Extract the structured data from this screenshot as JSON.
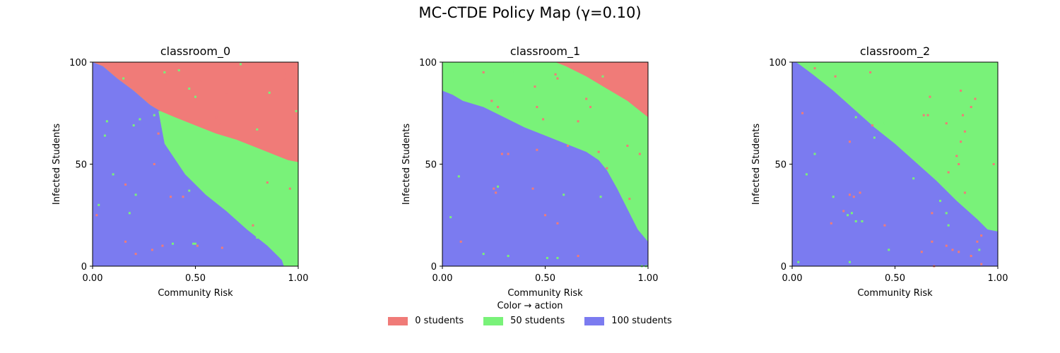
{
  "title": "MC-CTDE Policy Map (γ=0.10)",
  "legend": {
    "title": "Color → action",
    "items": [
      {
        "label": "0 students",
        "color": "#f07b78"
      },
      {
        "label": "50 students",
        "color": "#79f279"
      },
      {
        "label": "100 students",
        "color": "#7b7bf0"
      }
    ]
  },
  "chart_data": [
    {
      "type": "heatmap",
      "title": "classroom_0",
      "xlabel": "Community Risk",
      "ylabel": "Infected Students",
      "xlim": [
        0,
        1
      ],
      "ylim": [
        0,
        100
      ],
      "xticks": [
        "0.00",
        "0.50",
        "1.00"
      ],
      "yticks": [
        "0",
        "50",
        "100"
      ],
      "actions": [
        0,
        50,
        100
      ],
      "boundary_100_50": [
        [
          0.32,
          76
        ],
        [
          0.35,
          60
        ],
        [
          0.45,
          45
        ],
        [
          0.55,
          35
        ],
        [
          0.65,
          27
        ],
        [
          0.75,
          18
        ],
        [
          0.85,
          10
        ],
        [
          0.9,
          5
        ],
        [
          0.92,
          3
        ],
        [
          0.93,
          0
        ]
      ],
      "boundary_50_0": [
        [
          0.0,
          100
        ],
        [
          0.05,
          98
        ],
        [
          0.12,
          92
        ],
        [
          0.2,
          86
        ],
        [
          0.28,
          79
        ],
        [
          0.33,
          76
        ],
        [
          0.4,
          73
        ],
        [
          0.5,
          69
        ],
        [
          0.6,
          65
        ],
        [
          0.7,
          62
        ],
        [
          0.8,
          58
        ],
        [
          0.9,
          54
        ],
        [
          0.95,
          52
        ],
        [
          1.0,
          51
        ]
      ],
      "stray_points": [
        [
          0.11,
          99,
          0
        ],
        [
          0.21,
          99,
          0
        ],
        [
          0.35,
          95,
          50
        ],
        [
          0.42,
          96,
          50
        ],
        [
          0.53,
          91,
          0
        ],
        [
          0.36,
          91,
          0
        ],
        [
          0.72,
          99,
          50
        ],
        [
          0.94,
          94,
          0
        ],
        [
          0.93,
          92,
          0
        ],
        [
          0.47,
          87,
          50
        ],
        [
          0.65,
          85,
          0
        ],
        [
          0.86,
          85,
          50
        ],
        [
          0.5,
          83,
          50
        ],
        [
          0.15,
          92,
          50
        ],
        [
          0.97,
          75,
          0
        ],
        [
          0.99,
          76,
          50
        ],
        [
          0.6,
          73,
          0
        ],
        [
          0.62,
          70,
          0
        ],
        [
          0.8,
          67,
          50
        ],
        [
          0.3,
          74,
          50
        ],
        [
          0.23,
          72,
          50
        ],
        [
          0.2,
          69,
          50
        ],
        [
          0.07,
          71,
          50
        ],
        [
          0.06,
          64,
          50
        ],
        [
          0.32,
          65,
          0
        ],
        [
          0.3,
          50,
          0
        ],
        [
          0.1,
          45,
          50
        ],
        [
          0.16,
          40,
          0
        ],
        [
          0.21,
          35,
          50
        ],
        [
          0.44,
          34,
          0
        ],
        [
          0.38,
          34,
          0
        ],
        [
          0.96,
          38,
          0
        ],
        [
          0.85,
          41,
          0
        ],
        [
          0.03,
          30,
          50
        ],
        [
          0.18,
          26,
          50
        ],
        [
          0.47,
          37,
          50
        ],
        [
          0.78,
          20,
          0
        ],
        [
          0.02,
          25,
          0
        ],
        [
          0.16,
          12,
          0
        ],
        [
          0.21,
          6,
          0
        ],
        [
          0.29,
          8,
          0
        ],
        [
          0.34,
          10,
          0
        ],
        [
          0.39,
          11,
          50
        ],
        [
          0.49,
          11,
          50
        ],
        [
          0.5,
          11,
          50
        ],
        [
          0.51,
          10,
          0
        ],
        [
          0.63,
          9,
          0
        ],
        [
          0.8,
          14,
          50
        ]
      ]
    },
    {
      "type": "heatmap",
      "title": "classroom_1",
      "xlabel": "Community Risk",
      "ylabel": "Infected Students",
      "xlim": [
        0,
        1
      ],
      "ylim": [
        0,
        100
      ],
      "xticks": [
        "0.00",
        "0.50",
        "1.00"
      ],
      "yticks": [
        "0",
        "50",
        "100"
      ],
      "actions": [
        0,
        50,
        100
      ],
      "boundary_100_50": [
        [
          0.0,
          86
        ],
        [
          0.05,
          84
        ],
        [
          0.1,
          81
        ],
        [
          0.2,
          78
        ],
        [
          0.3,
          73
        ],
        [
          0.4,
          68
        ],
        [
          0.5,
          64
        ],
        [
          0.6,
          60
        ],
        [
          0.7,
          56
        ],
        [
          0.76,
          52
        ],
        [
          0.8,
          47
        ],
        [
          0.85,
          38
        ],
        [
          0.9,
          28
        ],
        [
          0.95,
          18
        ],
        [
          1.0,
          12
        ]
      ],
      "boundary_50_0": [
        [
          0.55,
          100
        ],
        [
          0.6,
          98
        ],
        [
          0.7,
          93
        ],
        [
          0.8,
          87
        ],
        [
          0.9,
          81
        ],
        [
          0.95,
          77
        ],
        [
          1.0,
          73
        ]
      ],
      "stray_points": [
        [
          0.2,
          95,
          0
        ],
        [
          0.55,
          94,
          0
        ],
        [
          0.78,
          93,
          50
        ],
        [
          0.89,
          95,
          0
        ],
        [
          0.91,
          99,
          0
        ],
        [
          0.35,
          95,
          50
        ],
        [
          0.45,
          88,
          0
        ],
        [
          0.56,
          92,
          0
        ],
        [
          0.7,
          82,
          0
        ],
        [
          0.24,
          81,
          0
        ],
        [
          0.27,
          78,
          0
        ],
        [
          0.46,
          78,
          0
        ],
        [
          0.72,
          78,
          0
        ],
        [
          0.61,
          59,
          0
        ],
        [
          0.66,
          71,
          0
        ],
        [
          0.49,
          72,
          0
        ],
        [
          0.46,
          57,
          0
        ],
        [
          0.29,
          55,
          0
        ],
        [
          0.32,
          55,
          0
        ],
        [
          0.08,
          44,
          50
        ],
        [
          0.76,
          56,
          0
        ],
        [
          0.9,
          59,
          0
        ],
        [
          0.96,
          55,
          0
        ],
        [
          0.8,
          48,
          0
        ],
        [
          0.25,
          38,
          0
        ],
        [
          0.27,
          39,
          50
        ],
        [
          0.26,
          36,
          0
        ],
        [
          0.44,
          38,
          0
        ],
        [
          0.59,
          35,
          50
        ],
        [
          0.77,
          34,
          50
        ],
        [
          0.91,
          33,
          0
        ],
        [
          0.04,
          24,
          50
        ],
        [
          0.5,
          25,
          0
        ],
        [
          0.56,
          21,
          0
        ],
        [
          0.09,
          12,
          0
        ],
        [
          0.2,
          6,
          50
        ],
        [
          0.32,
          5,
          50
        ],
        [
          0.51,
          4,
          50
        ],
        [
          0.56,
          4,
          50
        ],
        [
          0.66,
          5,
          0
        ],
        [
          0.97,
          0,
          50
        ],
        [
          0.99,
          0,
          50
        ]
      ]
    },
    {
      "type": "heatmap",
      "title": "classroom_2",
      "xlabel": "Community Risk",
      "ylabel": "Infected Students",
      "xlim": [
        0,
        1
      ],
      "ylim": [
        0,
        100
      ],
      "xticks": [
        "0.00",
        "0.50",
        "1.00"
      ],
      "yticks": [
        "0",
        "50",
        "100"
      ],
      "actions": [
        0,
        50,
        100
      ],
      "boundary_100_50": [
        [
          0.02,
          100
        ],
        [
          0.1,
          94
        ],
        [
          0.2,
          86
        ],
        [
          0.3,
          77
        ],
        [
          0.4,
          68
        ],
        [
          0.5,
          60
        ],
        [
          0.6,
          51
        ],
        [
          0.7,
          42
        ],
        [
          0.8,
          32
        ],
        [
          0.9,
          23
        ],
        [
          0.95,
          18
        ],
        [
          1.0,
          17
        ]
      ],
      "boundary_50_0": [],
      "stray_points": [
        [
          0.11,
          97,
          0
        ],
        [
          0.21,
          93,
          0
        ],
        [
          0.38,
          95,
          0
        ],
        [
          0.05,
          75,
          0
        ],
        [
          0.31,
          73,
          50
        ],
        [
          0.39,
          69,
          0
        ],
        [
          0.45,
          70,
          50
        ],
        [
          0.4,
          63,
          50
        ],
        [
          0.28,
          61,
          0
        ],
        [
          0.64,
          74,
          0
        ],
        [
          0.66,
          74,
          0
        ],
        [
          0.67,
          83,
          0
        ],
        [
          0.82,
          86,
          0
        ],
        [
          0.87,
          78,
          0
        ],
        [
          0.89,
          82,
          0
        ],
        [
          0.83,
          74,
          0
        ],
        [
          0.75,
          70,
          0
        ],
        [
          0.84,
          66,
          0
        ],
        [
          0.82,
          61,
          0
        ],
        [
          0.8,
          54,
          0
        ],
        [
          0.81,
          50,
          0
        ],
        [
          0.98,
          50,
          0
        ],
        [
          0.11,
          55,
          50
        ],
        [
          0.07,
          45,
          50
        ],
        [
          0.59,
          43,
          50
        ],
        [
          0.76,
          46,
          0
        ],
        [
          0.84,
          36,
          0
        ],
        [
          0.2,
          34,
          50
        ],
        [
          0.28,
          35,
          0
        ],
        [
          0.3,
          34,
          0
        ],
        [
          0.33,
          36,
          0
        ],
        [
          0.25,
          27,
          0
        ],
        [
          0.27,
          25,
          50
        ],
        [
          0.29,
          26,
          50
        ],
        [
          0.31,
          22,
          50
        ],
        [
          0.34,
          22,
          50
        ],
        [
          0.45,
          20,
          0
        ],
        [
          0.68,
          26,
          0
        ],
        [
          0.72,
          32,
          50
        ],
        [
          0.75,
          26,
          50
        ],
        [
          0.76,
          20,
          50
        ],
        [
          0.19,
          21,
          0
        ],
        [
          0.03,
          2,
          50
        ],
        [
          0.28,
          2,
          50
        ],
        [
          0.47,
          8,
          50
        ],
        [
          0.63,
          7,
          0
        ],
        [
          0.68,
          12,
          0
        ],
        [
          0.69,
          0,
          0
        ],
        [
          0.75,
          10,
          0
        ],
        [
          0.78,
          8,
          0
        ],
        [
          0.81,
          7,
          0
        ],
        [
          0.87,
          5,
          0
        ],
        [
          0.9,
          12,
          0
        ],
        [
          0.92,
          15,
          0
        ],
        [
          0.91,
          8,
          50
        ],
        [
          0.92,
          1,
          0
        ]
      ]
    }
  ]
}
